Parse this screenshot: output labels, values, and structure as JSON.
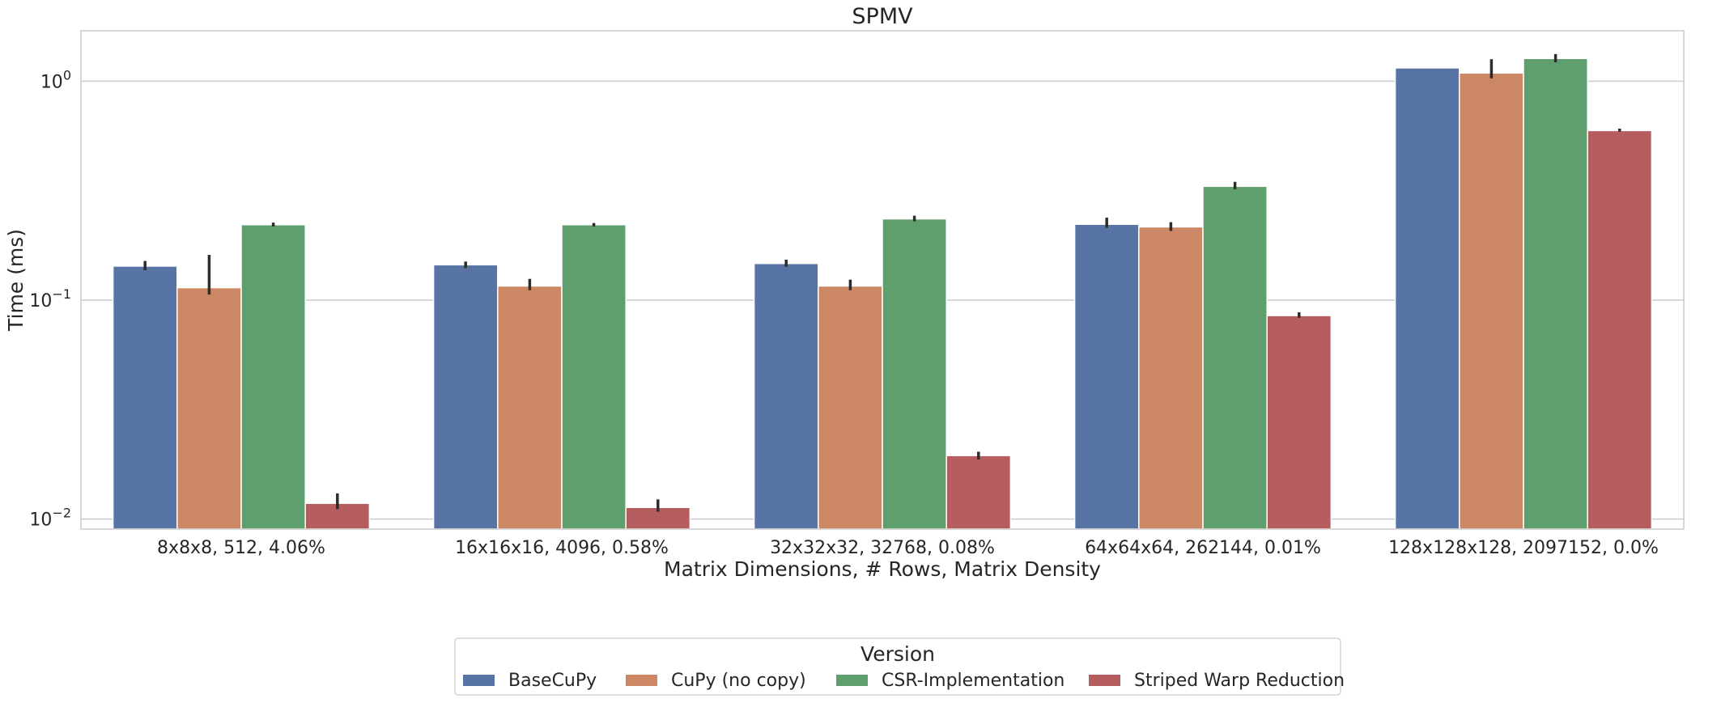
{
  "chart_data": {
    "type": "bar",
    "title": "SPMV",
    "xlabel": "Matrix Dimensions, # Rows, Matrix Density",
    "ylabel": "Time (ms)",
    "yscale": "log",
    "ylim": [
      0.009,
      1.7
    ],
    "yticks": [
      {
        "value": 0.01,
        "base": "10",
        "exp": "−2"
      },
      {
        "value": 0.1,
        "base": "10",
        "exp": "−1"
      },
      {
        "value": 1,
        "base": "10",
        "exp": "0"
      }
    ],
    "grid": true,
    "categories": [
      "8x8x8, 512, 4.06%",
      "16x16x16, 4096, 0.58%",
      "32x32x32, 32768, 0.08%",
      "64x64x64, 262144, 0.01%",
      "128x128x128, 2097152, 0.0%"
    ],
    "series": [
      {
        "name": "BaseCuPy",
        "color": "#5874a4",
        "values": [
          0.143,
          0.145,
          0.147,
          0.222,
          1.15
        ],
        "error": [
          [
            0.137,
            0.151
          ],
          [
            0.14,
            0.15
          ],
          [
            0.142,
            0.153
          ],
          [
            0.214,
            0.238
          ],
          [
            1.15,
            1.15
          ]
        ]
      },
      {
        "name": "CuPy (no copy)",
        "color": "#cc8864",
        "values": [
          0.114,
          0.116,
          0.116,
          0.216,
          1.09
        ],
        "error": [
          [
            0.106,
            0.161
          ],
          [
            0.111,
            0.125
          ],
          [
            0.111,
            0.124
          ],
          [
            0.207,
            0.227
          ],
          [
            1.03,
            1.26
          ]
        ]
      },
      {
        "name": "CSR-Implementation",
        "color": "#5f9f6e",
        "values": [
          0.221,
          0.221,
          0.235,
          0.331,
          1.27
        ],
        "error": [
          [
            0.217,
            0.226
          ],
          [
            0.217,
            0.225
          ],
          [
            0.229,
            0.243
          ],
          [
            0.321,
            0.347
          ],
          [
            1.22,
            1.33
          ]
        ]
      },
      {
        "name": "Striped Warp Reduction",
        "color": "#b65d60",
        "values": [
          0.0118,
          0.0113,
          0.0195,
          0.085,
          0.595
        ],
        "error": [
          [
            0.0111,
            0.0131
          ],
          [
            0.0108,
            0.0123
          ],
          [
            0.0187,
            0.0203
          ],
          [
            0.083,
            0.088
          ],
          [
            0.588,
            0.607
          ]
        ]
      }
    ],
    "legend": {
      "title": "Version",
      "placement": "bottom-center"
    }
  }
}
